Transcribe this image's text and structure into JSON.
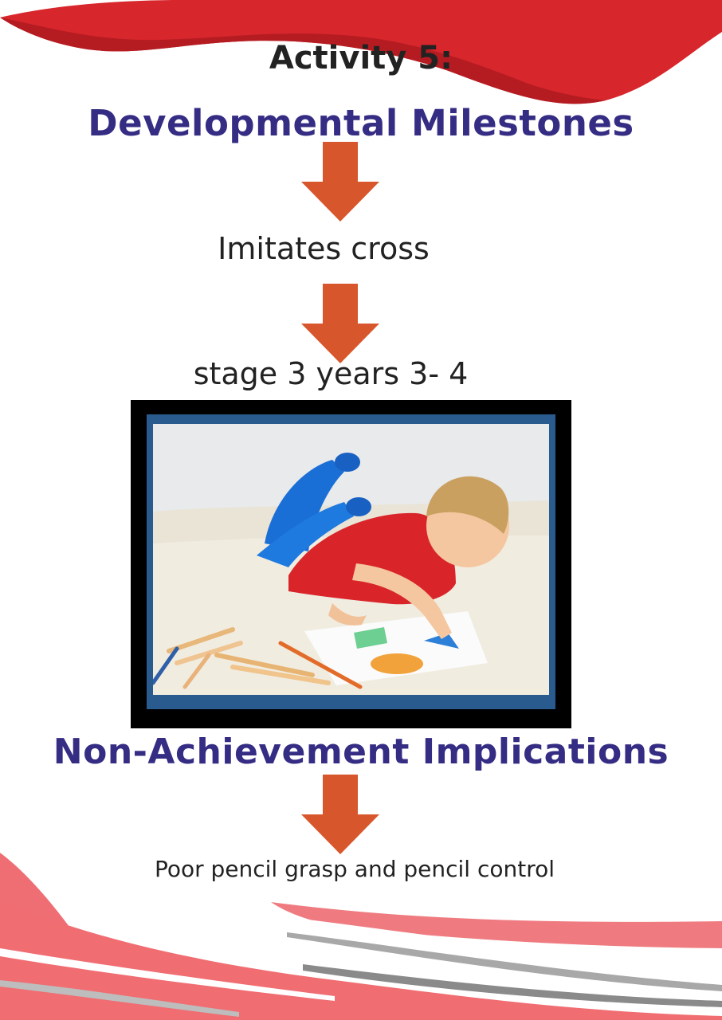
{
  "activity": {
    "title": "Activity 5:"
  },
  "section1": {
    "heading": "Developmental Milestones"
  },
  "milestone": {
    "text": "Imitates cross"
  },
  "stage": {
    "text": "stage 3 years 3- 4"
  },
  "photo": {
    "subject": "child drawing shapes with colored pencils"
  },
  "section2": {
    "heading": "Non-Achievement Implications"
  },
  "implication": {
    "text": "Poor pencil grasp and pencil control"
  },
  "colors": {
    "heading": "#352c84",
    "arrow": "#d8562b",
    "swoosh_top": "#d7262c",
    "swoosh_bottom": "#ee6e74"
  },
  "icons": {
    "arrow": "arrow-down-icon"
  }
}
